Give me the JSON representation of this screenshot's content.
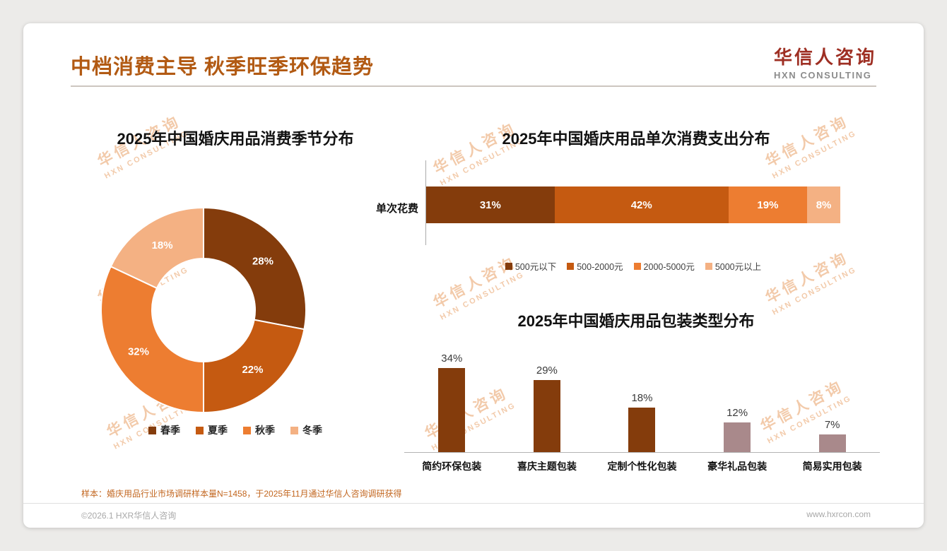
{
  "header": {
    "title": "中档消费主导 秋季旺季环保趋势",
    "logo_cn": "华信人咨询",
    "logo_en": "HXN CONSULTING"
  },
  "watermark": {
    "line1": "华信人咨询",
    "line2": "HXN CONSULTING",
    "color": "#E9A065"
  },
  "theme": {
    "title_color": "#B25A13",
    "logo_red": "#9E2F23",
    "footnote_color": "#C2661F",
    "card_background": "#FFFFFF",
    "page_background": "#ECEBE9"
  },
  "chart_data": [
    {
      "id": "season-donut",
      "type": "pie",
      "subtype": "donut",
      "title": "2025年中国婚庆用品消费季节分布",
      "categories": [
        "春季",
        "夏季",
        "秋季",
        "冬季"
      ],
      "values": [
        28,
        22,
        32,
        18
      ],
      "unit": "%",
      "colors": [
        "#843C0C",
        "#C55A11",
        "#ED7D31",
        "#F4B183"
      ],
      "legend_position": "bottom",
      "start_angle_deg": 0,
      "direction": "clockwise"
    },
    {
      "id": "spend-stacked-bar",
      "type": "bar",
      "subtype": "horizontal-stacked",
      "title": "2025年中国婚庆用品单次消费支出分布",
      "row_label": "单次花费",
      "categories": [
        "500元以下",
        "500-2000元",
        "2000-5000元",
        "5000元以上"
      ],
      "values": [
        31,
        42,
        19,
        8
      ],
      "unit": "%",
      "colors": [
        "#843C0C",
        "#C55A11",
        "#ED7D31",
        "#F4B183"
      ],
      "legend_position": "bottom",
      "xlim": [
        0,
        100
      ]
    },
    {
      "id": "packaging-bars",
      "type": "bar",
      "subtype": "vertical",
      "title": "2025年中国婚庆用品包装类型分布",
      "categories": [
        "简约环保包装",
        "喜庆主题包装",
        "定制个性化包装",
        "豪华礼品包装",
        "简易实用包装"
      ],
      "values": [
        34,
        29,
        18,
        12,
        7
      ],
      "unit": "%",
      "bar_colors": [
        "#843C0C",
        "#843C0C",
        "#843C0C",
        "#A9898B",
        "#A9898B"
      ],
      "ylim": [
        0,
        40
      ],
      "grid": false,
      "value_labels": true
    }
  ],
  "footer": {
    "note": "样本：婚庆用品行业市场调研样本量N=1458，于2025年11月通过华信人咨询调研获得",
    "copyright": "©2026.1 HXR华信人咨询",
    "website": "www.hxrcon.com"
  }
}
